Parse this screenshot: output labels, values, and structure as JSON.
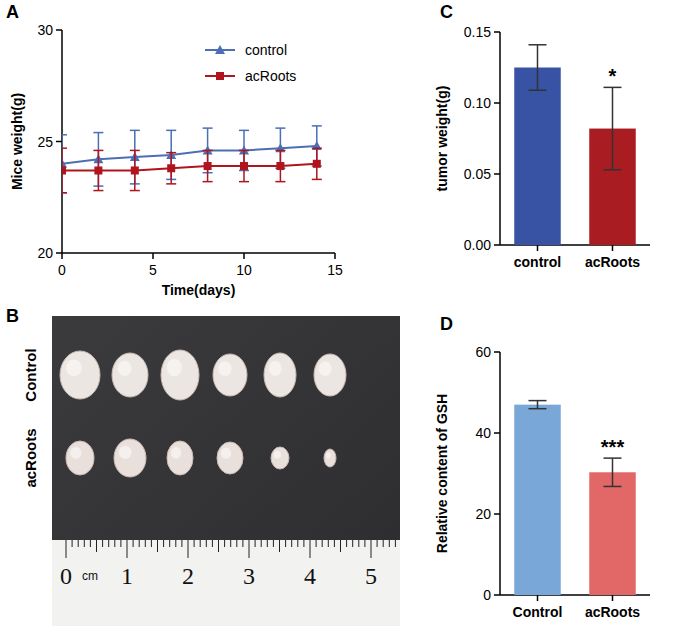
{
  "chart_data": [
    {
      "type": "line",
      "panel": "A",
      "x_label": "Time(days)",
      "y_label": "Mice weight(g)",
      "x": [
        0,
        2,
        4,
        6,
        8,
        10,
        12,
        14
      ],
      "series": [
        {
          "name": "control",
          "color": "#4a6fb5",
          "marker": "triangle",
          "values": [
            24.0,
            24.2,
            24.3,
            24.4,
            24.6,
            24.6,
            24.7,
            24.8
          ],
          "errors": [
            1.3,
            1.2,
            1.2,
            1.1,
            1.0,
            0.9,
            0.9,
            0.9
          ]
        },
        {
          "name": "acRoots",
          "color": "#b0141c",
          "marker": "square",
          "values": [
            23.7,
            23.7,
            23.7,
            23.8,
            23.9,
            23.9,
            23.9,
            24.0
          ],
          "errors": [
            1.0,
            0.9,
            0.9,
            0.7,
            0.7,
            0.7,
            0.7,
            0.7
          ]
        }
      ],
      "xlim": [
        0,
        15
      ],
      "xticks": [
        0,
        5,
        10,
        15
      ],
      "ylim": [
        20,
        30
      ],
      "yticks": [
        20,
        25,
        30
      ],
      "legend": "top"
    },
    {
      "type": "photo",
      "panel": "B",
      "row_labels": [
        "Control",
        "acRoots"
      ],
      "ruler_labels": [
        "0",
        "1",
        "2",
        "3",
        "4",
        "5"
      ],
      "ruler_unit": "cm"
    },
    {
      "type": "bar",
      "panel": "C",
      "y_label": "tumor weight(g)",
      "categories": [
        "control",
        "acRoots"
      ],
      "values": [
        0.125,
        0.082
      ],
      "errors": [
        0.016,
        0.029
      ],
      "colors": [
        "#3953a4",
        "#a81c22"
      ],
      "significance": [
        null,
        "*"
      ],
      "ylim": [
        0,
        0.15
      ],
      "yticks": [
        {
          "value": 0,
          "label": "0.00"
        },
        {
          "value": 0.05,
          "label": "0.05"
        },
        {
          "value": 0.1,
          "label": "0.10"
        },
        {
          "value": 0.15,
          "label": "0.15"
        }
      ]
    },
    {
      "type": "bar",
      "panel": "D",
      "y_label": "Relative content of GSH",
      "categories": [
        "Control",
        "acRoots"
      ],
      "values": [
        47.0,
        30.3
      ],
      "errors": [
        1.0,
        3.5
      ],
      "colors": [
        "#79a7d8",
        "#e26868"
      ],
      "significance": [
        null,
        "***"
      ],
      "ylim": [
        0,
        60
      ],
      "yticks": [
        0,
        20,
        40,
        60
      ]
    }
  ]
}
